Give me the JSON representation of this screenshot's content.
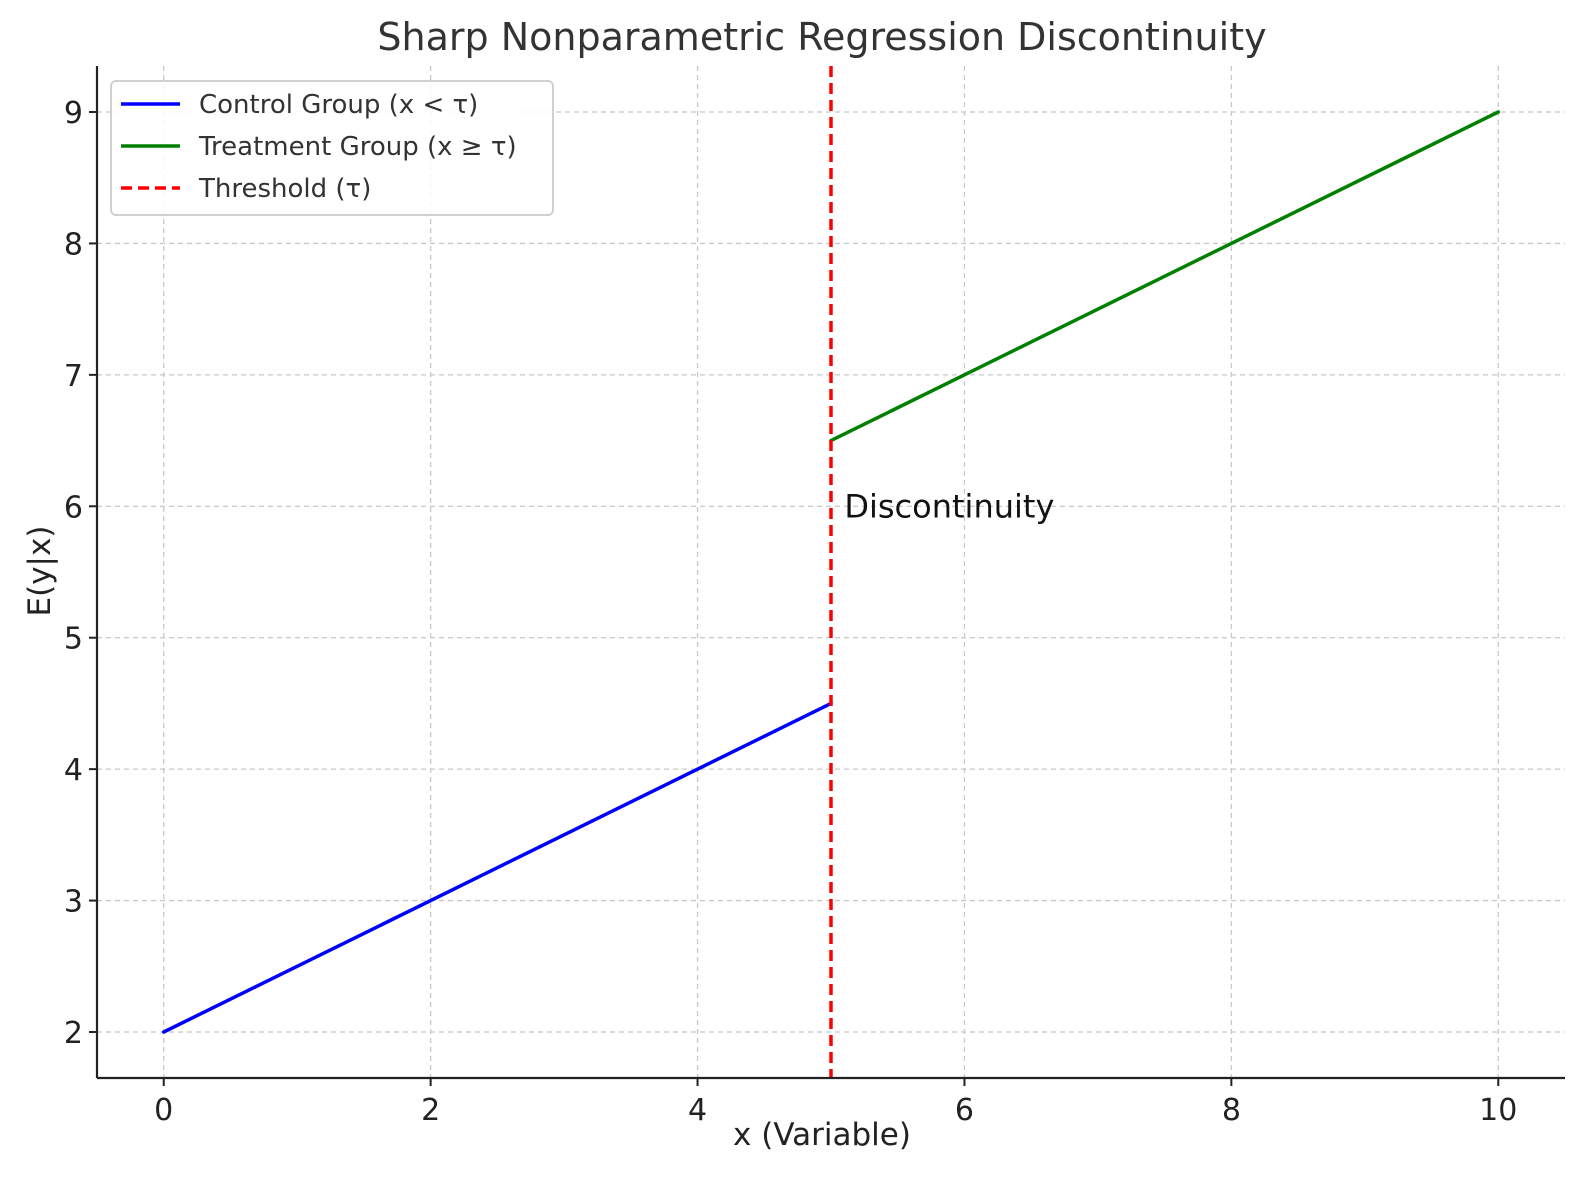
{
  "chart_data": {
    "type": "line",
    "title": "Sharp Nonparametric Regression Discontinuity",
    "xlabel": "x (Variable)",
    "ylabel": "E(y|x)",
    "xlim": [
      -0.5,
      10.5
    ],
    "ylim": [
      1.65,
      9.35
    ],
    "xticks": [
      0,
      2,
      4,
      6,
      8,
      10
    ],
    "yticks": [
      2,
      3,
      4,
      5,
      6,
      7,
      8,
      9
    ],
    "grid": true,
    "legend_position": "top-left",
    "series": [
      {
        "name": "Control Group (x < τ)",
        "color": "#0000ff",
        "style": "solid",
        "points": [
          [
            0,
            2
          ],
          [
            5,
            4.5
          ]
        ]
      },
      {
        "name": "Treatment Group (x ≥ τ)",
        "color": "#008000",
        "style": "solid",
        "points": [
          [
            5,
            6.5
          ],
          [
            10,
            9
          ]
        ]
      },
      {
        "name": "Threshold (τ)",
        "color": "#ff0000",
        "style": "dashed",
        "type": "vline",
        "x": 5
      }
    ],
    "annotations": [
      {
        "text": "Discontinuity",
        "x": 5.1,
        "y": 6
      }
    ]
  }
}
